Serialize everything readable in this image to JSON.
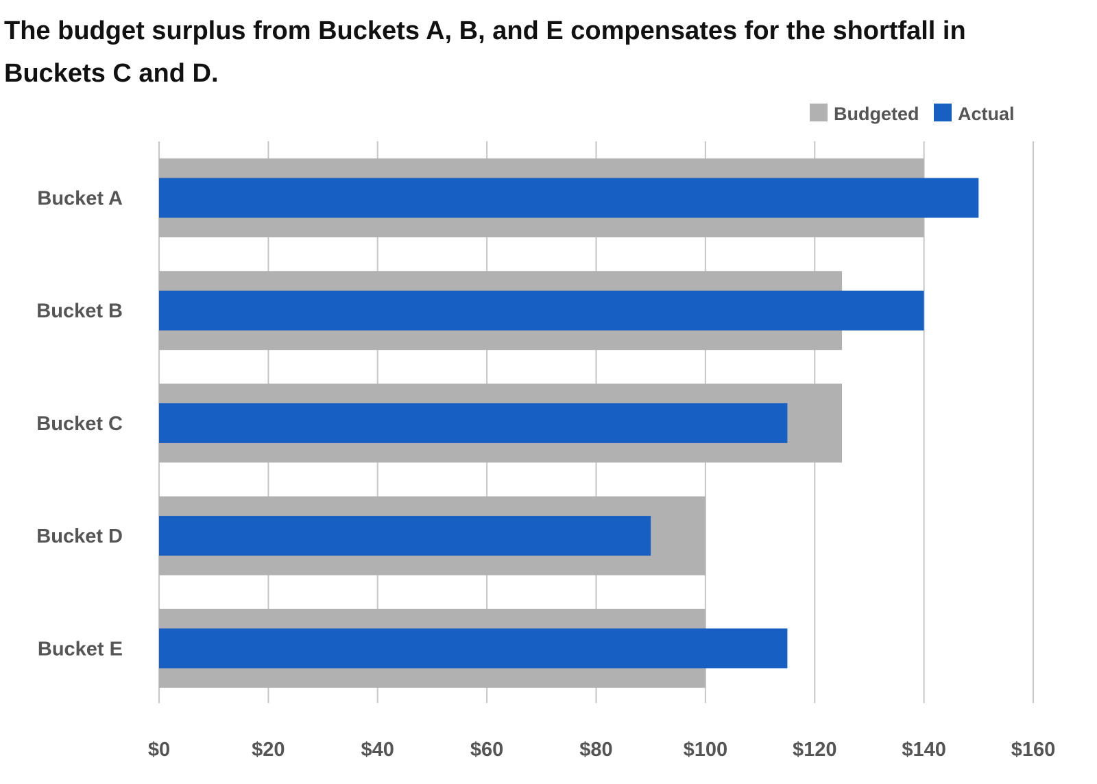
{
  "chart_data": {
    "type": "bar",
    "orientation": "horizontal",
    "title": "The budget surplus from Buckets A, B, and E compensates for the shortfall in Buckets C and D.",
    "xlabel": "",
    "ylabel": "",
    "categories": [
      "Bucket A",
      "Bucket B",
      "Bucket C",
      "Bucket D",
      "Bucket E"
    ],
    "series": [
      {
        "name": "Budgeted",
        "values": [
          140,
          125,
          125,
          100,
          100
        ],
        "color": "#b1b1b1"
      },
      {
        "name": "Actual",
        "values": [
          150,
          140,
          115,
          90,
          115
        ],
        "color": "#175fc3"
      }
    ],
    "xlim": [
      0,
      160
    ],
    "ticks": [
      0,
      20,
      40,
      60,
      80,
      100,
      120,
      140,
      160
    ],
    "tick_labels": [
      "$0",
      "$20",
      "$40",
      "$60",
      "$80",
      "$100",
      "$120",
      "$140",
      "$160"
    ],
    "grid": "vertical",
    "grid_color": "#c6c6c6",
    "label_color": "#555555",
    "legend_position": "top-right"
  }
}
